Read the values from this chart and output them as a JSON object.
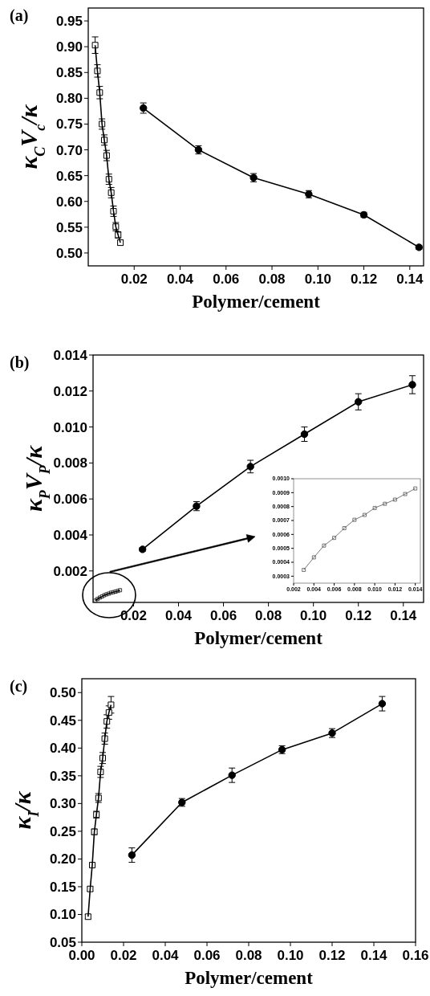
{
  "chart_data": [
    {
      "type": "line",
      "title": "(a)",
      "xlabel": "Polymer/cement",
      "ylabel": "κ$_{C}$V$_{c}$/κ",
      "xlim": [
        0,
        0.146
      ],
      "ylim": [
        0.475,
        0.975
      ],
      "xticks": [
        0.02,
        0.04,
        0.06,
        0.08,
        {
          "value": 0.1,
          "label": "0.10"
        },
        0.12,
        0.14
      ],
      "yticks": [
        {
          "value": 0.5,
          "label": "0.50"
        },
        0.55,
        {
          "value": 0.6,
          "label": "0.60"
        },
        0.65,
        {
          "value": 0.7,
          "label": "0.70"
        },
        0.75,
        {
          "value": 0.8,
          "label": "0.80"
        },
        0.85,
        {
          "value": 0.9,
          "label": "0.90"
        },
        0.95
      ],
      "series": [
        {
          "color": "#000000",
          "marker": "square",
          "x": [
            0.003,
            0.004,
            0.005,
            0.006,
            0.007,
            0.008,
            0.009,
            0.01,
            0.011,
            0.012,
            0.013,
            0.014
          ],
          "values": [
            0.903,
            0.853,
            0.811,
            0.75,
            0.719,
            0.689,
            0.643,
            0.617,
            0.581,
            0.551,
            0.535,
            0.52
          ],
          "errors": [
            0.016,
            0.012,
            0.012,
            0.01,
            0.01,
            0.01,
            0.01,
            0.01,
            0.01,
            0.008,
            0.006,
            0.005
          ]
        },
        {
          "color": "#000000",
          "marker": "circle",
          "x": [
            0.024,
            0.048,
            0.072,
            0.096,
            0.12,
            0.144
          ],
          "values": [
            0.781,
            0.7,
            0.646,
            0.614,
            0.574,
            0.511
          ],
          "errors": [
            0.01,
            0.008,
            0.008,
            0.007,
            0.005,
            0.004
          ]
        }
      ]
    },
    {
      "type": "line",
      "title": "(b)",
      "xlabel": "Polymer/cement",
      "ylabel": "κ$_{P}$V$_{P}$/κ",
      "xlim": [
        0.002,
        0.149
      ],
      "ylim": [
        0.00025,
        0.014
      ],
      "xticks": [
        0.02,
        0.04,
        0.06,
        0.08,
        {
          "value": 0.1,
          "label": "0.10"
        },
        0.12,
        0.14
      ],
      "yticks": [
        0.002,
        0.004,
        0.006,
        0.008,
        {
          "value": 0.01,
          "label": "0.010"
        },
        0.012,
        0.014
      ],
      "series": [
        {
          "color": "#000000",
          "marker": "square",
          "x": [
            0.003,
            0.004,
            0.005,
            0.006,
            0.007,
            0.008,
            0.009,
            0.01,
            0.011,
            0.012,
            0.013,
            0.014
          ],
          "values": [
            0.00035,
            0.00044,
            0.00052,
            0.00058,
            0.00065,
            0.0007,
            0.00074,
            0.00079,
            0.00082,
            0.00085,
            0.00089,
            0.00093
          ]
        },
        {
          "color": "#000000",
          "marker": "circle",
          "x": [
            0.024,
            0.048,
            0.072,
            0.096,
            0.12,
            0.144
          ],
          "values": [
            0.0032,
            0.0056,
            0.0078,
            0.0096,
            0.0114,
            0.01235
          ],
          "errors": [
            0.0001,
            0.00025,
            0.00035,
            0.0004,
            0.00045,
            0.0005
          ]
        }
      ]
    },
    {
      "type": "line",
      "xlim": [
        0.002,
        0.0145
      ],
      "ylim": [
        0.00025,
        0.001
      ],
      "xticks": [
        0.002,
        0.004,
        0.006,
        0.008,
        {
          "value": 0.01,
          "label": "0.010"
        },
        0.012,
        0.014
      ],
      "yticks": [
        0.0003,
        0.0004,
        0.0005,
        0.0006,
        0.0007,
        0.0008,
        0.0009,
        {
          "value": 0.001,
          "label": "0.0010"
        }
      ],
      "series": [
        {
          "color": "#555555",
          "marker": "square",
          "x": [
            0.003,
            0.004,
            0.005,
            0.006,
            0.007,
            0.008,
            0.009,
            0.01,
            0.011,
            0.012,
            0.013,
            0.014
          ],
          "values": [
            0.000345,
            0.000435,
            0.00052,
            0.000575,
            0.000645,
            0.000705,
            0.00074,
            0.00079,
            0.00082,
            0.00085,
            0.00089,
            0.00093
          ]
        }
      ]
    },
    {
      "type": "line",
      "title": "(c)",
      "xlabel": "Polymer/cement",
      "ylabel": "κ$_{I}$/κ",
      "xlim": [
        0,
        0.16
      ],
      "ylim": [
        0.05,
        0.525
      ],
      "xticks": [
        {
          "value": 0,
          "label": "0.00"
        },
        0.02,
        0.04,
        0.06,
        0.08,
        {
          "value": 0.1,
          "label": "0.10"
        },
        0.12,
        0.14,
        {
          "value": 0.16,
          "label": "0.16"
        }
      ],
      "yticks": [
        0.05,
        {
          "value": 0.1,
          "label": "0.10"
        },
        0.15,
        {
          "value": 0.2,
          "label": "0.20"
        },
        0.25,
        {
          "value": 0.3,
          "label": "0.30"
        },
        0.35,
        {
          "value": 0.4,
          "label": "0.40"
        },
        0.45,
        {
          "value": 0.5,
          "label": "0.50"
        }
      ],
      "series": [
        {
          "color": "#000000",
          "marker": "square",
          "x": [
            0.003,
            0.004,
            0.005,
            0.006,
            0.007,
            0.008,
            0.009,
            0.01,
            0.011,
            0.012,
            0.013,
            0.014
          ],
          "values": [
            0.096,
            0.146,
            0.189,
            0.249,
            0.28,
            0.31,
            0.357,
            0.382,
            0.417,
            0.448,
            0.464,
            0.478
          ],
          "errors": [
            0.004,
            0.004,
            0.004,
            0.005,
            0.006,
            0.008,
            0.01,
            0.01,
            0.01,
            0.012,
            0.012,
            0.015
          ]
        },
        {
          "color": "#000000",
          "marker": "circle",
          "x": [
            0.024,
            0.048,
            0.072,
            0.096,
            0.12,
            0.144
          ],
          "values": [
            0.207,
            0.302,
            0.351,
            0.397,
            0.427,
            0.48
          ],
          "errors": [
            0.013,
            0.007,
            0.013,
            0.007,
            0.008,
            0.013
          ]
        }
      ]
    }
  ]
}
